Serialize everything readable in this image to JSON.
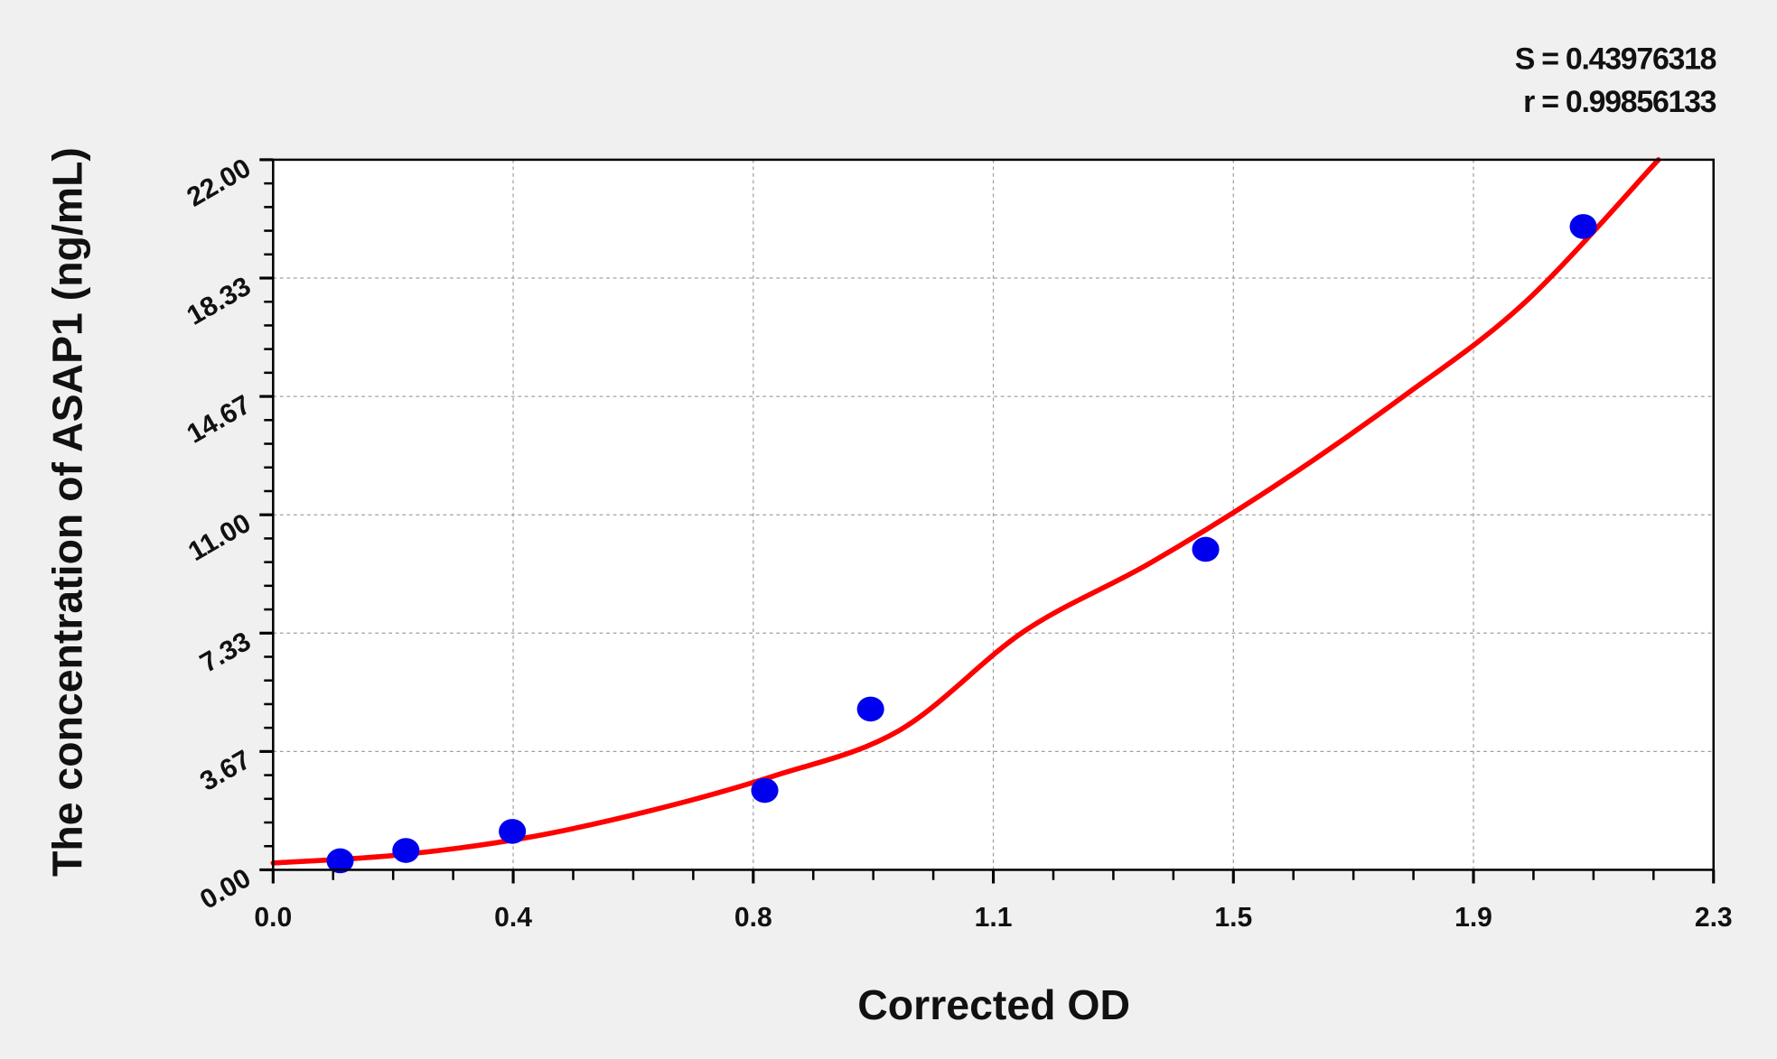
{
  "chart_data": {
    "type": "scatter",
    "title": "",
    "xlabel": "Corrected OD",
    "ylabel": "The concentration of ASAP1 (ng/mL)",
    "xlim": [
      0.0,
      2.3
    ],
    "ylim": [
      0.0,
      22.0
    ],
    "x_ticks": [
      "0.0",
      "0.4",
      "0.8",
      "1.1",
      "1.5",
      "1.9",
      "2.3"
    ],
    "y_ticks": [
      "0.00",
      "3.67",
      "7.33",
      "11.00",
      "14.67",
      "18.33",
      "22.00"
    ],
    "grid": true,
    "annotations": [
      "S = 0.43976318",
      "r = 0.99856133"
    ],
    "series": [
      {
        "kind": "points",
        "color": "#0000ee",
        "x": [
          0.107,
          0.212,
          0.382,
          0.785,
          0.954,
          1.489,
          2.092
        ],
        "y": [
          0.28,
          0.6,
          1.19,
          2.46,
          4.98,
          9.93,
          19.93
        ]
      },
      {
        "kind": "fit-curve",
        "color": "#ff0000",
        "x": [
          0.0,
          0.2,
          0.4,
          0.6,
          0.8,
          1.0,
          1.2,
          1.4,
          1.6,
          1.8,
          2.0,
          2.212
        ],
        "y": [
          0.21,
          0.46,
          0.98,
          1.82,
          2.91,
          4.32,
          7.4,
          9.5,
          11.9,
          14.6,
          17.6,
          22.0
        ]
      }
    ]
  }
}
